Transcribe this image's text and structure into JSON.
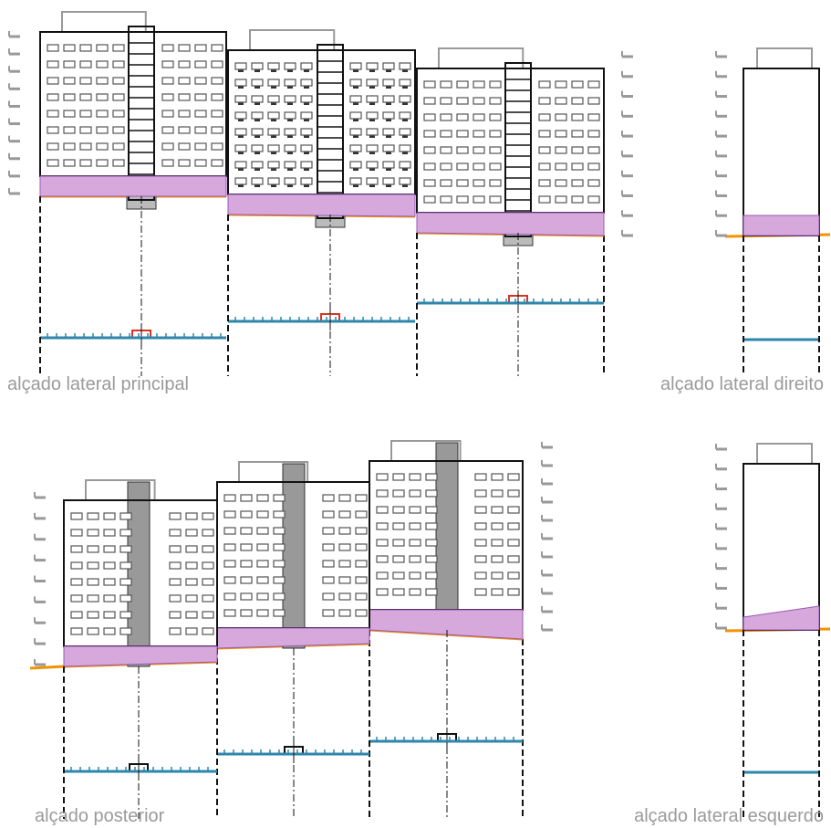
{
  "drawings": [
    {
      "label": "alçado lateral principal"
    },
    {
      "label": "alçado lateral direito"
    },
    {
      "label": "alçado posterior"
    },
    {
      "label": "alçado lateral esquerdo"
    }
  ]
}
